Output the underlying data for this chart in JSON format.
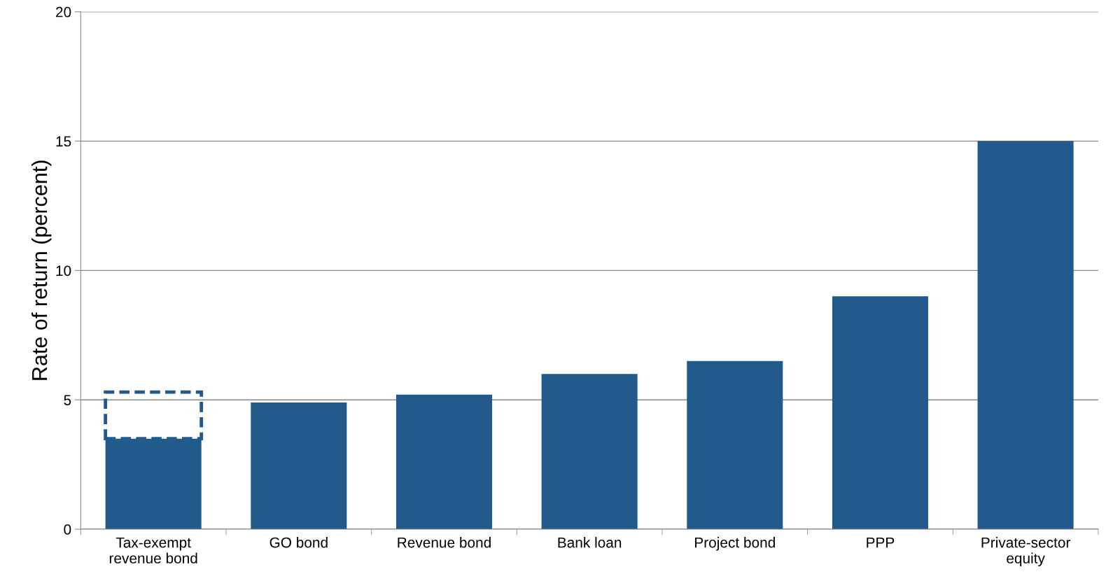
{
  "chart_data": {
    "type": "bar",
    "ylabel": "Rate of return (percent)",
    "categories": [
      "Tax-exempt\nrevenue bond",
      "GO bond",
      "Revenue bond",
      "Bank loan",
      "Project bond",
      "PPP",
      "Private-sector\nequity"
    ],
    "stacked": true,
    "series": [
      {
        "color": "#235a8c",
        "values": [
          3.5,
          4.9,
          5.2,
          6.0,
          6.5,
          9.0,
          15.0
        ]
      },
      {
        "color": "#235a8c",
        "line_style": "dashed",
        "values": [
          1.8,
          null,
          null,
          null,
          null,
          null,
          null
        ]
      }
    ],
    "ylim": [
      0,
      20
    ],
    "yticks": [
      0,
      5,
      10,
      15,
      20
    ],
    "grid": "y",
    "legend": false
  }
}
